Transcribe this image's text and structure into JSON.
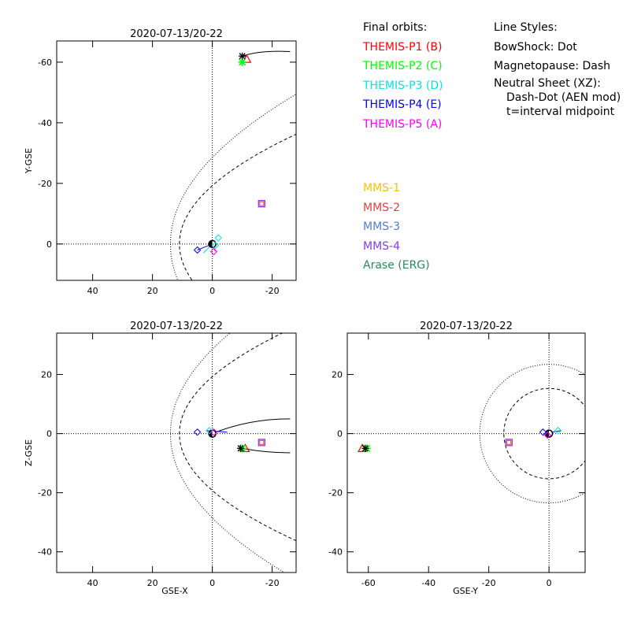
{
  "legend": {
    "orbits_title": "Final orbits:",
    "orbits": [
      {
        "label": "THEMIS-P1 (B)",
        "color": "#ff0000"
      },
      {
        "label": "THEMIS-P2 (C)",
        "color": "#00ff00"
      },
      {
        "label": "THEMIS-P3 (D)",
        "color": "#00e5e5"
      },
      {
        "label": "THEMIS-P4 (E)",
        "color": "#0000ff"
      },
      {
        "label": "THEMIS-P5 (A)",
        "color": "#ff00ff"
      }
    ],
    "mms": [
      {
        "label": "MMS-1",
        "color": "#ffc000"
      },
      {
        "label": "MMS-2",
        "color": "#e04040"
      },
      {
        "label": "MMS-3",
        "color": "#4a80d8"
      },
      {
        "label": "MMS-4",
        "color": "#8a3ae8"
      },
      {
        "label": "Arase (ERG)",
        "color": "#2a8a5a"
      }
    ],
    "styles_title": "Line Styles:",
    "styles": [
      "BowShock: Dot",
      "Magnetopause: Dash",
      "Neutral Sheet (XZ):",
      "Dash-Dot (AEN mod)",
      "t=interval midpoint"
    ]
  },
  "chart_data": [
    {
      "type": "scatter",
      "title": "2020-07-13/20-22",
      "xlabel": "",
      "ylabel": "Y-GSE",
      "xlim": [
        52,
        -28
      ],
      "ylim": [
        12,
        -67
      ],
      "xticks": [
        40,
        20,
        0,
        -20
      ],
      "yticks": [
        -60,
        -40,
        -20,
        0
      ],
      "points": [
        {
          "name": "THEMIS-P1",
          "x": -11.5,
          "y": -61,
          "marker": "triangle",
          "color": "#ff0000"
        },
        {
          "name": "THEMIS-P2",
          "x": -10,
          "y": -60,
          "marker": "asterisk",
          "color": "#00ff00"
        },
        {
          "name": "Earth",
          "x": 0,
          "y": 0,
          "marker": "earth",
          "color": "#000000"
        },
        {
          "name": "MMS",
          "x": -16.5,
          "y": -13.3,
          "marker": "square",
          "color": "#8a3ae8"
        }
      ]
    },
    {
      "type": "scatter",
      "title": "2020-07-13/20-22",
      "xlabel": "GSE-X",
      "ylabel": "Z-GSE",
      "xlim": [
        52,
        -28
      ],
      "ylim": [
        -47,
        34
      ],
      "xticks": [
        40,
        20,
        0,
        -20
      ],
      "yticks": [
        20,
        0,
        -20,
        -40
      ],
      "points": [
        {
          "name": "THEMIS-P1",
          "x": -11,
          "y": -5,
          "marker": "triangle",
          "color": "#ff0000"
        },
        {
          "name": "THEMIS-P2",
          "x": -10,
          "y": -5,
          "marker": "asterisk",
          "color": "#00ff00"
        },
        {
          "name": "Earth",
          "x": 0,
          "y": 0,
          "marker": "earth",
          "color": "#000000"
        },
        {
          "name": "MMS",
          "x": -16.5,
          "y": -3,
          "marker": "square",
          "color": "#8a3ae8"
        }
      ]
    },
    {
      "type": "scatter",
      "title": "2020-07-13/20-22",
      "xlabel": "GSE-Y",
      "ylabel": "",
      "xlim": [
        -67,
        12
      ],
      "ylim": [
        -47,
        34
      ],
      "xticks": [
        -60,
        -40,
        -20,
        0
      ],
      "yticks": [
        20,
        0,
        -20,
        -40
      ],
      "points": [
        {
          "name": "THEMIS-P1",
          "x": -62,
          "y": -5,
          "marker": "triangle",
          "color": "#ff0000"
        },
        {
          "name": "THEMIS-P2",
          "x": -60.5,
          "y": -5,
          "marker": "asterisk",
          "color": "#00ff00"
        },
        {
          "name": "Earth",
          "x": 0,
          "y": 0,
          "marker": "earth",
          "color": "#000000"
        },
        {
          "name": "MMS",
          "x": -13.3,
          "y": -3,
          "marker": "square",
          "color": "#8a3ae8"
        }
      ]
    }
  ]
}
